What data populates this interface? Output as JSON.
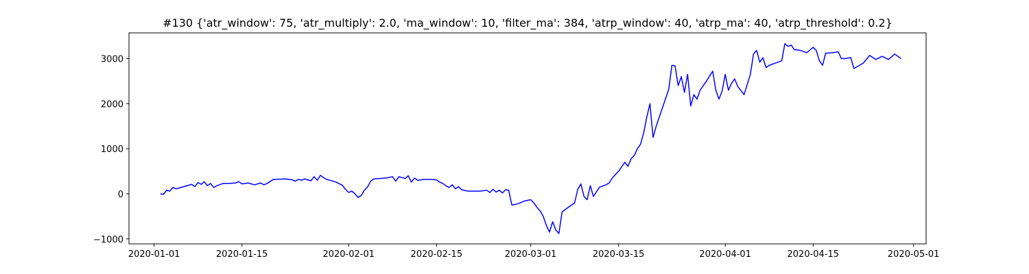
{
  "chart_data": {
    "type": "line",
    "title": "#130 {'atr_window': 75, 'atr_multiply': 2.0, 'ma_window': 10, 'filter_ma': 384, 'atrp_window': 40, 'atrp_ma': 40, 'atrp_threshold': 0.2}",
    "xlabel": "",
    "ylabel": "",
    "x_type": "date",
    "xlim": [
      "2019-12-28",
      "2020-05-03"
    ],
    "ylim": [
      -1110,
      3570
    ],
    "xticks": [
      "2020-01-01",
      "2020-01-15",
      "2020-02-01",
      "2020-02-15",
      "2020-03-01",
      "2020-03-15",
      "2020-04-01",
      "2020-04-15",
      "2020-05-01"
    ],
    "yticks": [
      -1000,
      0,
      1000,
      2000,
      3000
    ],
    "grid": false,
    "color": "#0000ff",
    "series": [
      {
        "name": "",
        "points": [
          [
            "2020-01-02",
            0
          ],
          [
            "2020-01-02T12:00",
            -10
          ],
          [
            "2020-01-03",
            80
          ],
          [
            "2020-01-03T12:00",
            60
          ],
          [
            "2020-01-04",
            140
          ],
          [
            "2020-01-04T12:00",
            110
          ],
          [
            "2020-01-05",
            130
          ],
          [
            "2020-01-06",
            170
          ],
          [
            "2020-01-07",
            210
          ],
          [
            "2020-01-07T12:00",
            160
          ],
          [
            "2020-01-08",
            250
          ],
          [
            "2020-01-08T12:00",
            210
          ],
          [
            "2020-01-09",
            270
          ],
          [
            "2020-01-09T12:00",
            180
          ],
          [
            "2020-01-10",
            230
          ],
          [
            "2020-01-10T12:00",
            140
          ],
          [
            "2020-01-11",
            180
          ],
          [
            "2020-01-12",
            230
          ],
          [
            "2020-01-13",
            230
          ],
          [
            "2020-01-14",
            240
          ],
          [
            "2020-01-14T12:00",
            270
          ],
          [
            "2020-01-15",
            220
          ],
          [
            "2020-01-16",
            240
          ],
          [
            "2020-01-17",
            200
          ],
          [
            "2020-01-18",
            240
          ],
          [
            "2020-01-18T12:00",
            200
          ],
          [
            "2020-01-19",
            230
          ],
          [
            "2020-01-20",
            320
          ],
          [
            "2020-01-22",
            330
          ],
          [
            "2020-01-23",
            310
          ],
          [
            "2020-01-23T12:00",
            280
          ],
          [
            "2020-01-24",
            320
          ],
          [
            "2020-01-24T12:00",
            300
          ],
          [
            "2020-01-25",
            330
          ],
          [
            "2020-01-26",
            290
          ],
          [
            "2020-01-26T12:00",
            380
          ],
          [
            "2020-01-27",
            300
          ],
          [
            "2020-01-27T12:00",
            410
          ],
          [
            "2020-01-28",
            360
          ],
          [
            "2020-01-28T12:00",
            320
          ],
          [
            "2020-01-29",
            300
          ],
          [
            "2020-01-30",
            260
          ],
          [
            "2020-01-31",
            190
          ],
          [
            "2020-01-31T12:00",
            100
          ],
          [
            "2020-02-01",
            30
          ],
          [
            "2020-02-01T12:00",
            60
          ],
          [
            "2020-02-02",
            0
          ],
          [
            "2020-02-02T12:00",
            -80
          ],
          [
            "2020-02-03",
            -40
          ],
          [
            "2020-02-03T12:00",
            80
          ],
          [
            "2020-02-04",
            150
          ],
          [
            "2020-02-04T12:00",
            280
          ],
          [
            "2020-02-05",
            330
          ],
          [
            "2020-02-07",
            350
          ],
          [
            "2020-02-08",
            380
          ],
          [
            "2020-02-08T12:00",
            280
          ],
          [
            "2020-02-09",
            380
          ],
          [
            "2020-02-10",
            340
          ],
          [
            "2020-02-10T12:00",
            400
          ],
          [
            "2020-02-11",
            260
          ],
          [
            "2020-02-11T12:00",
            350
          ],
          [
            "2020-02-12",
            300
          ],
          [
            "2020-02-13",
            320
          ],
          [
            "2020-02-14",
            320
          ],
          [
            "2020-02-15",
            310
          ],
          [
            "2020-02-15T12:00",
            260
          ],
          [
            "2020-02-16",
            230
          ],
          [
            "2020-02-16T12:00",
            180
          ],
          [
            "2020-02-17",
            140
          ],
          [
            "2020-02-17T12:00",
            200
          ],
          [
            "2020-02-18",
            110
          ],
          [
            "2020-02-18T12:00",
            160
          ],
          [
            "2020-02-19",
            90
          ],
          [
            "2020-02-20",
            60
          ],
          [
            "2020-02-22",
            60
          ],
          [
            "2020-02-23",
            80
          ],
          [
            "2020-02-23T12:00",
            30
          ],
          [
            "2020-02-24",
            100
          ],
          [
            "2020-02-24T12:00",
            40
          ],
          [
            "2020-02-25",
            80
          ],
          [
            "2020-02-25T12:00",
            20
          ],
          [
            "2020-02-26",
            90
          ],
          [
            "2020-02-26T12:00",
            80
          ],
          [
            "2020-02-27",
            -250
          ],
          [
            "2020-02-28",
            -220
          ],
          [
            "2020-02-29",
            -160
          ],
          [
            "2020-03-01",
            -130
          ],
          [
            "2020-03-01T12:00",
            -200
          ],
          [
            "2020-03-02",
            -300
          ],
          [
            "2020-03-02T12:00",
            -380
          ],
          [
            "2020-03-03",
            -500
          ],
          [
            "2020-03-03T12:00",
            -700
          ],
          [
            "2020-03-04",
            -850
          ],
          [
            "2020-03-04T12:00",
            -620
          ],
          [
            "2020-03-05",
            -800
          ],
          [
            "2020-03-05T12:00",
            -880
          ],
          [
            "2020-03-06",
            -400
          ],
          [
            "2020-03-08",
            -200
          ],
          [
            "2020-03-08T12:00",
            100
          ],
          [
            "2020-03-09",
            220
          ],
          [
            "2020-03-09T12:00",
            -60
          ],
          [
            "2020-03-10",
            -130
          ],
          [
            "2020-03-10T12:00",
            180
          ],
          [
            "2020-03-11",
            -60
          ],
          [
            "2020-03-11T12:00",
            50
          ],
          [
            "2020-03-12",
            150
          ],
          [
            "2020-03-13",
            200
          ],
          [
            "2020-03-13T12:00",
            240
          ],
          [
            "2020-03-14",
            350
          ],
          [
            "2020-03-15",
            500
          ],
          [
            "2020-03-16",
            700
          ],
          [
            "2020-03-16T12:00",
            610
          ],
          [
            "2020-03-17",
            780
          ],
          [
            "2020-03-17T12:00",
            850
          ],
          [
            "2020-03-18",
            1000
          ],
          [
            "2020-03-18T12:00",
            1100
          ],
          [
            "2020-03-19",
            1350
          ],
          [
            "2020-03-19T12:00",
            1700
          ],
          [
            "2020-03-20",
            2000
          ],
          [
            "2020-03-20T12:00",
            1250
          ],
          [
            "2020-03-21",
            1500
          ],
          [
            "2020-03-23",
            2320
          ],
          [
            "2020-03-23T12:00",
            2850
          ],
          [
            "2020-03-24",
            2840
          ],
          [
            "2020-03-24T12:00",
            2400
          ],
          [
            "2020-03-25",
            2600
          ],
          [
            "2020-03-25T12:00",
            2250
          ],
          [
            "2020-03-26",
            2650
          ],
          [
            "2020-03-26T12:00",
            1950
          ],
          [
            "2020-03-27",
            2200
          ],
          [
            "2020-03-27T12:00",
            2100
          ],
          [
            "2020-03-28",
            2300
          ],
          [
            "2020-03-29",
            2500
          ],
          [
            "2020-03-30",
            2720
          ],
          [
            "2020-03-30T12:00",
            2300
          ],
          [
            "2020-03-31",
            2100
          ],
          [
            "2020-03-31T12:00",
            2280
          ],
          [
            "2020-04-01",
            2650
          ],
          [
            "2020-04-01T12:00",
            2300
          ],
          [
            "2020-04-02",
            2450
          ],
          [
            "2020-04-02T12:00",
            2550
          ],
          [
            "2020-04-03",
            2380
          ],
          [
            "2020-04-04",
            2200
          ],
          [
            "2020-04-05",
            2650
          ],
          [
            "2020-04-05T12:00",
            3100
          ],
          [
            "2020-04-06",
            3180
          ],
          [
            "2020-04-06T12:00",
            2920
          ],
          [
            "2020-04-07",
            3020
          ],
          [
            "2020-04-07T12:00",
            2800
          ],
          [
            "2020-04-08",
            2850
          ],
          [
            "2020-04-09",
            2900
          ],
          [
            "2020-04-10",
            2950
          ],
          [
            "2020-04-10T12:00",
            3330
          ],
          [
            "2020-04-11",
            3270
          ],
          [
            "2020-04-11T12:00",
            3300
          ],
          [
            "2020-04-12",
            3200
          ],
          [
            "2020-04-13",
            3180
          ],
          [
            "2020-04-14",
            3130
          ],
          [
            "2020-04-15",
            3250
          ],
          [
            "2020-04-15T12:00",
            3180
          ],
          [
            "2020-04-16",
            2950
          ],
          [
            "2020-04-16T12:00",
            2850
          ],
          [
            "2020-04-17",
            3120
          ],
          [
            "2020-04-18",
            3130
          ],
          [
            "2020-04-19",
            3150
          ],
          [
            "2020-04-19T12:00",
            3000
          ],
          [
            "2020-04-20",
            3000
          ],
          [
            "2020-04-21",
            3020
          ],
          [
            "2020-04-21T12:00",
            2780
          ],
          [
            "2020-04-22",
            2820
          ],
          [
            "2020-04-23",
            2900
          ],
          [
            "2020-04-24",
            3070
          ],
          [
            "2020-04-25",
            2980
          ],
          [
            "2020-04-26",
            3050
          ],
          [
            "2020-04-27",
            2980
          ],
          [
            "2020-04-28",
            3100
          ],
          [
            "2020-04-29",
            3000
          ]
        ]
      }
    ]
  }
}
